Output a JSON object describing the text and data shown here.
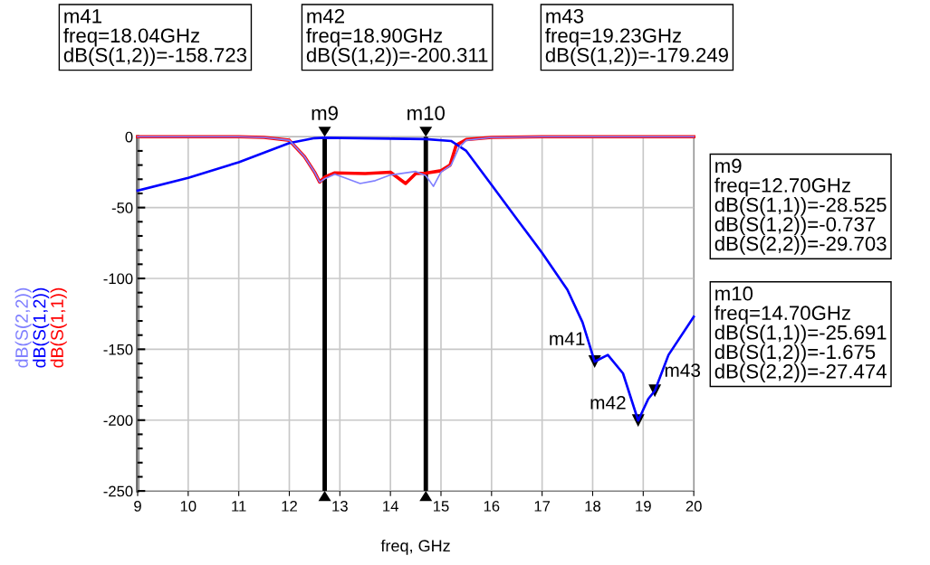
{
  "chart_data": {
    "type": "line",
    "xlabel": "freq, GHz",
    "series": [
      {
        "name": "dB(S(2,2))",
        "color": "#8080ff",
        "x": [
          9,
          10,
          11,
          11.5,
          12,
          12.3,
          12.5,
          12.6,
          12.7,
          12.9,
          13.1,
          13.4,
          13.7,
          14,
          14.5,
          14.7,
          14.85,
          15,
          15.2,
          15.35,
          15.5,
          16,
          17,
          18,
          19,
          20
        ],
        "values": [
          0,
          0,
          0,
          -0.5,
          -2.5,
          -14,
          -25,
          -32,
          -29.703,
          -26.5,
          -29,
          -33,
          -31,
          -27,
          -24.5,
          -27.474,
          -35,
          -25,
          -20,
          -8,
          -2.5,
          -0.5,
          0,
          0,
          0,
          0
        ]
      },
      {
        "name": "dB(S(1,2))",
        "color": "#0000ff",
        "x": [
          9,
          10,
          11,
          12,
          12.5,
          12.7,
          14.7,
          15.2,
          15.5,
          16,
          16.5,
          17,
          17.5,
          17.8,
          18.04,
          18.3,
          18.6,
          18.9,
          19.1,
          19.23,
          19.5,
          20
        ],
        "values": [
          -38,
          -29,
          -18,
          -4.5,
          -1,
          -0.737,
          -1.675,
          -3,
          -10,
          -34,
          -58,
          -82,
          -108,
          -131,
          -158.723,
          -154,
          -167,
          -200.311,
          -185,
          -179.249,
          -154,
          -127
        ]
      },
      {
        "name": "dB(S(1,1))",
        "color": "#ff0000",
        "x": [
          9,
          10,
          11,
          11.5,
          12,
          12.3,
          12.5,
          12.6,
          12.7,
          12.9,
          13.5,
          14,
          14.3,
          14.5,
          14.7,
          15,
          15.18,
          15.3,
          15.5,
          16,
          17,
          18,
          19,
          20
        ],
        "values": [
          0,
          0,
          0,
          -0.5,
          -2.5,
          -14,
          -25,
          -32,
          -28.525,
          -25.5,
          -26,
          -25,
          -33,
          -26,
          -25.691,
          -24,
          -20,
          -6,
          -2,
          -0.5,
          0,
          0,
          0,
          0
        ]
      }
    ],
    "xlim": [
      9,
      20
    ],
    "xticks": [
      9,
      10,
      11,
      12,
      13,
      14,
      15,
      16,
      17,
      18,
      19,
      20
    ],
    "ylim": [
      -250,
      0
    ],
    "yticks": [
      -250,
      -200,
      -150,
      -100,
      -50,
      0
    ],
    "grid": true,
    "marker": "none",
    "line_style": "solid",
    "ref_lines": [
      {
        "axis": "x",
        "value": 12.7,
        "label": "m9",
        "color": "#000000"
      },
      {
        "axis": "x",
        "value": 14.7,
        "label": "m10",
        "color": "#000000"
      }
    ],
    "annotations": [
      "m41\nfreq=18.04GHz\ndB(S(1,2))=-158.723",
      "m42\nfreq=18.90GHz\ndB(S(1,2))=-200.311",
      "m43\nfreq=19.23GHz\ndB(S(1,2))=-179.249",
      "m9\nfreq=12.70GHz\ndB(S(1,1))=-28.525\ndB(S(1,2))=-0.737\ndB(S(2,2))=-29.703",
      "m10\nfreq=14.70GHz\ndB(S(1,1))=-25.691\ndB(S(1,2))=-1.675\ndB(S(2,2))=-27.474",
      {
        "text": "m41",
        "x": 18.04,
        "y": -158.723
      },
      {
        "text": "m42",
        "x": 18.9,
        "y": -200.311
      },
      {
        "text": "m43",
        "x": 19.23,
        "y": -179.249
      }
    ]
  }
}
